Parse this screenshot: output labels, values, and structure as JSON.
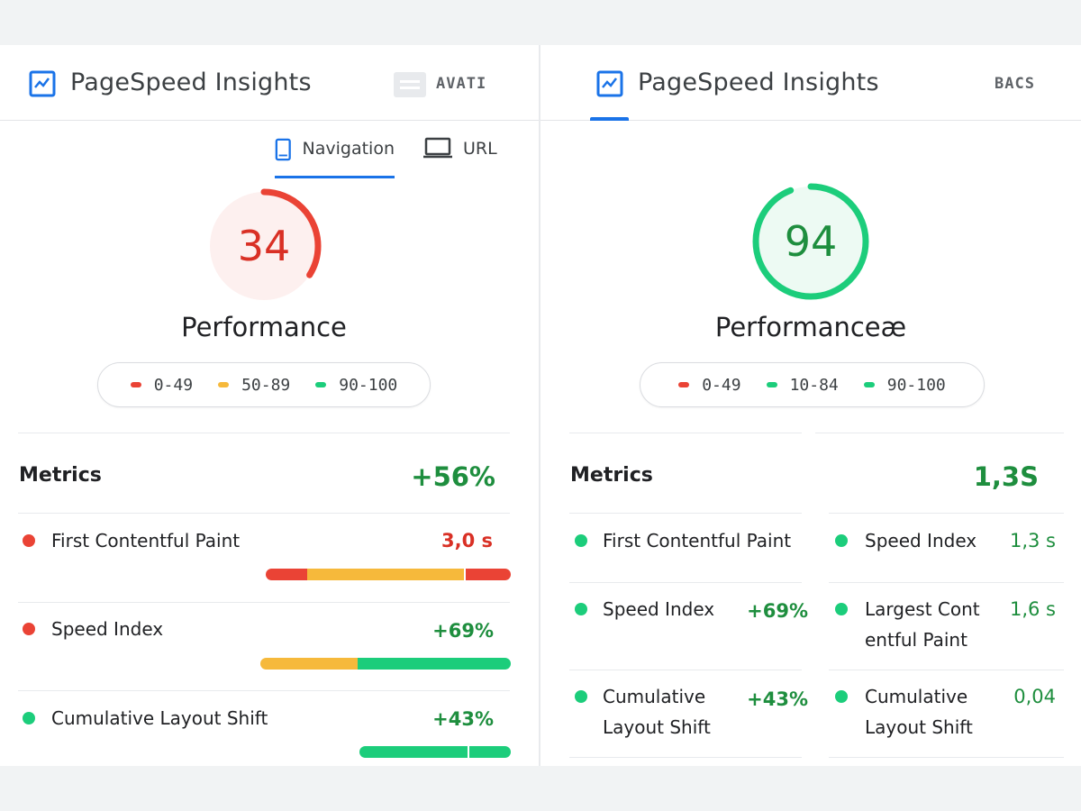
{
  "colors": {
    "red": "#ea4335",
    "orange": "#f6b93b",
    "green": "#1ccd7b",
    "text_green": "#1e8e3e",
    "text_red": "#d93025",
    "blue": "#1a73e8"
  },
  "left": {
    "brand": "PageSpeed Insights",
    "top_tag": "AVATI",
    "tabs": [
      {
        "label": "Navigation",
        "icon": "tablet-icon"
      },
      {
        "label": "URL",
        "icon": "laptop-icon"
      }
    ],
    "score": "34",
    "score_fraction": 0.34,
    "perf_title": "Performance",
    "legend": [
      {
        "label": "0-49",
        "color": "#ea4335"
      },
      {
        "label": "50-89",
        "color": "#f6b93b"
      },
      {
        "label": "90-100",
        "color": "#1ccd7b"
      }
    ],
    "metrics_title": "Metrics",
    "metrics_value": "+56%",
    "metrics": [
      {
        "label": "First Contentful Paint",
        "value": "3,0 s",
        "dot": "#ea4335",
        "value_color": "#d93025"
      },
      {
        "label": "Speed Index",
        "value": "+69%",
        "dot": "#ea4335",
        "value_color": "#1e8e3e"
      },
      {
        "label": "Cumulative Layout Shift",
        "value": "+43%",
        "dot": "#1ccd7b",
        "value_color": "#1e8e3e"
      }
    ]
  },
  "right": {
    "brand": "PageSpeed Insights",
    "top_tag": "BACS",
    "score": "94",
    "score_fraction": 0.94,
    "perf_title": "Performanceæ",
    "legend": [
      {
        "label": "0-49",
        "color": "#ea4335"
      },
      {
        "label": "10-84",
        "color": "#1ccd7b"
      },
      {
        "label": "90-100",
        "color": "#1ccd7b"
      }
    ],
    "metrics_title": "Metrics",
    "metrics_value": "1,3S",
    "col1": [
      {
        "label": "First Contentful Paint",
        "value": ""
      },
      {
        "label": "Speed Index",
        "value": "+69%"
      },
      {
        "label_line1": "Cumulative",
        "label_line2": "Layout Shift",
        "value": "+43%"
      }
    ],
    "col2": [
      {
        "label": "Speed Index",
        "value": "1,3 s"
      },
      {
        "label_line1": "Largest Cont",
        "label_line2": "entful Paint",
        "value": "1,6 s"
      },
      {
        "label_line1": "Cumulative",
        "label_line2": "Layout Shift",
        "value": "0,04"
      }
    ]
  }
}
